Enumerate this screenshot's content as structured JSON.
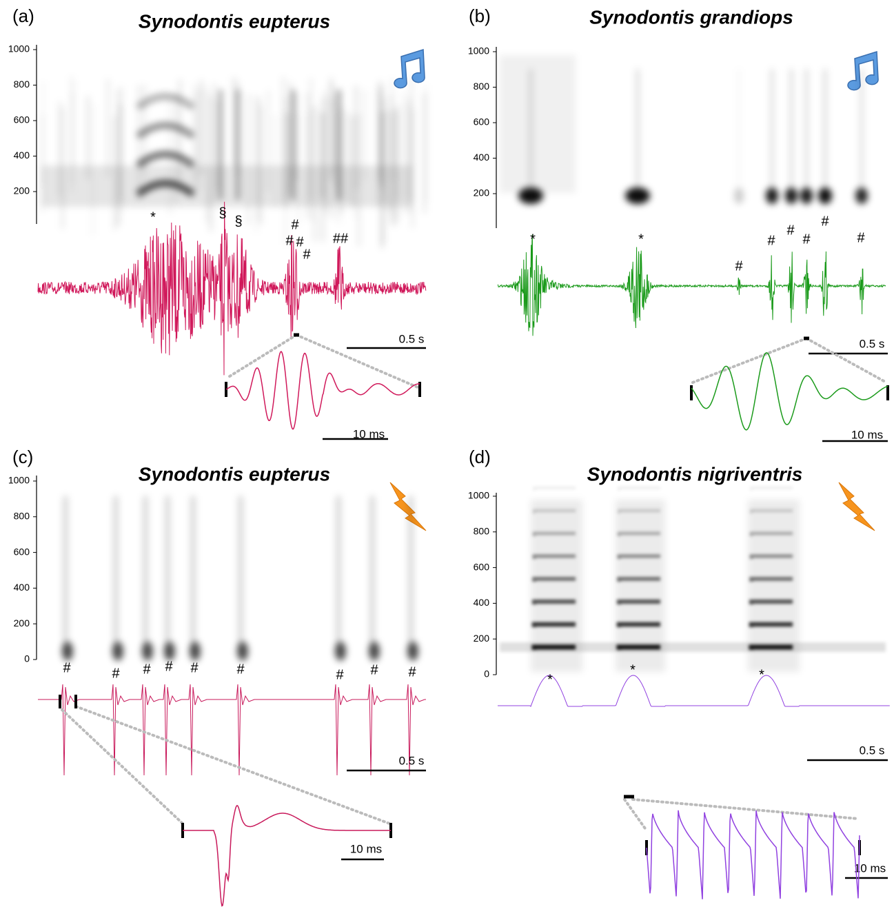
{
  "panels": [
    {
      "label": "(a)",
      "title": "Synodontis eupterus",
      "yticks": [
        1000,
        800,
        600,
        400,
        200
      ],
      "annotations": [
        "*",
        "§",
        "§",
        "#",
        "#",
        "#",
        "#",
        "##"
      ],
      "scale_bars": [
        "0.5 s",
        "10 ms"
      ]
    },
    {
      "label": "(b)",
      "title": "Synodontis grandiops",
      "yticks": [
        1000,
        800,
        600,
        400,
        200
      ],
      "annotations": [
        "*",
        "*",
        "#",
        "#",
        "#",
        "#",
        "#",
        "#"
      ],
      "scale_bars": [
        "0.5 s",
        "10 ms"
      ]
    },
    {
      "label": "(c)",
      "title": "Synodontis eupterus",
      "yticks": [
        1000,
        800,
        600,
        400,
        200,
        0
      ],
      "annotations": [
        "#",
        "#",
        "#",
        "#",
        "#",
        "#",
        "#",
        "#",
        "#"
      ],
      "scale_bars": [
        "0.5 s",
        "10 ms"
      ]
    },
    {
      "label": "(d)",
      "title": "Synodontis nigriventris",
      "yticks": [
        1000,
        800,
        600,
        400,
        200,
        0
      ],
      "annotations": [
        "*",
        "*",
        "*"
      ],
      "scale_bars": [
        "0.5 s",
        "10 ms"
      ]
    }
  ]
}
